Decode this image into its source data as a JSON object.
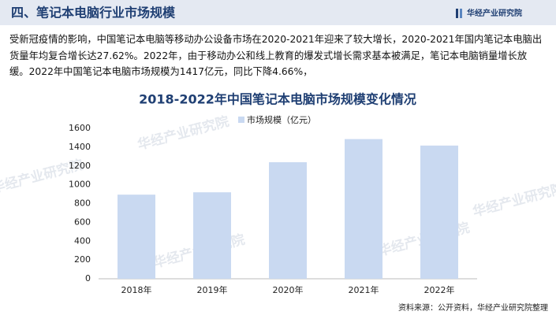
{
  "header": {
    "title": "四、笔记本电脑行业市场规模",
    "brand": "华经产业研究院"
  },
  "paragraph": "受新冠疫情的影响，中国笔记本电脑等移动办公设备市场在2020-2021年迎来了较大增长，2020-2021年国内笔记本电脑出货量年均复合增长达27.62%。2022年，由于移动办公和线上教育的爆发式增长需求基本被满足，笔记本电脑销量增长放缓。2022年中国笔记本电脑市场规模为1417亿元，同比下降4.66%，",
  "chart_data": {
    "type": "bar",
    "title": "2018-2022年中国笔记本电脑市场规模变化情况",
    "categories": [
      "2018年",
      "2019年",
      "2020年",
      "2021年",
      "2022年"
    ],
    "series": [
      {
        "name": "市场规模（亿元）",
        "color": "#c9d9f1",
        "values": [
          895,
          920,
          1240,
          1486,
          1417
        ]
      }
    ],
    "ylim": [
      0,
      1600
    ],
    "yticks": [
      0,
      200,
      400,
      600,
      800,
      1000,
      1200,
      1400,
      1600
    ],
    "grid": false
  },
  "source": "资料来源：公开资料，华经产业研究院整理",
  "watermark": "华经产业研究院"
}
